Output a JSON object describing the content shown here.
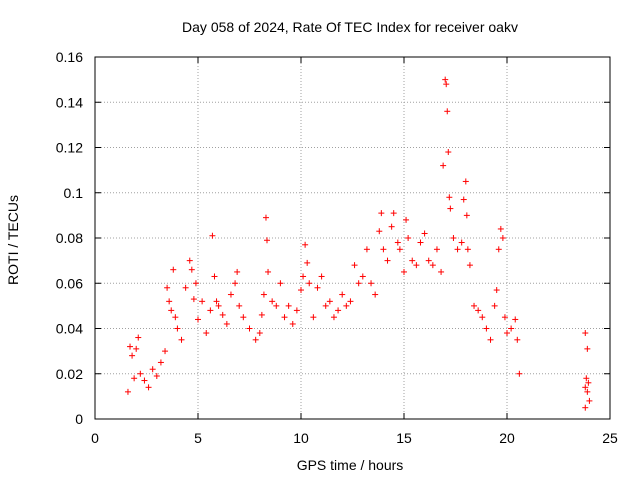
{
  "chart_data": {
    "type": "scatter",
    "title": "Day 058 of 2024, Rate Of TEC Index for receiver oakv",
    "xlabel": "GPS time / hours",
    "ylabel": "ROTI / TECUs",
    "xlim": [
      0,
      25
    ],
    "ylim": [
      0,
      0.16
    ],
    "xticks": [
      0,
      5,
      10,
      15,
      20,
      25
    ],
    "xtick_labels": [
      "0",
      "5",
      "10",
      "15",
      "20",
      "25"
    ],
    "yticks": [
      0,
      0.02,
      0.04,
      0.06,
      0.08,
      0.1,
      0.12,
      0.14,
      0.16
    ],
    "ytick_labels": [
      "0",
      "0.02",
      "0.04",
      "0.06",
      "0.08",
      "0.1",
      "0.12",
      "0.14",
      "0.16"
    ],
    "grid": true,
    "marker": "+",
    "colors": {
      "points": "#ff0000",
      "grid": "#a0a0a0",
      "axes": "#000000"
    },
    "series": [
      {
        "name": "ROTI",
        "points": [
          [
            1.6,
            0.012
          ],
          [
            1.7,
            0.032
          ],
          [
            1.8,
            0.028
          ],
          [
            1.9,
            0.018
          ],
          [
            2.0,
            0.031
          ],
          [
            2.1,
            0.036
          ],
          [
            2.2,
            0.02
          ],
          [
            2.4,
            0.017
          ],
          [
            2.6,
            0.014
          ],
          [
            2.8,
            0.022
          ],
          [
            3.0,
            0.019
          ],
          [
            3.2,
            0.025
          ],
          [
            3.4,
            0.03
          ],
          [
            3.5,
            0.058
          ],
          [
            3.6,
            0.052
          ],
          [
            3.7,
            0.048
          ],
          [
            3.8,
            0.066
          ],
          [
            3.9,
            0.045
          ],
          [
            4.0,
            0.04
          ],
          [
            4.2,
            0.035
          ],
          [
            4.4,
            0.058
          ],
          [
            4.6,
            0.07
          ],
          [
            4.7,
            0.066
          ],
          [
            4.8,
            0.053
          ],
          [
            4.9,
            0.06
          ],
          [
            5.0,
            0.044
          ],
          [
            5.2,
            0.052
          ],
          [
            5.4,
            0.038
          ],
          [
            5.6,
            0.048
          ],
          [
            5.7,
            0.081
          ],
          [
            5.8,
            0.063
          ],
          [
            5.9,
            0.052
          ],
          [
            6.0,
            0.05
          ],
          [
            6.2,
            0.046
          ],
          [
            6.4,
            0.042
          ],
          [
            6.6,
            0.055
          ],
          [
            6.8,
            0.06
          ],
          [
            6.9,
            0.065
          ],
          [
            7.0,
            0.05
          ],
          [
            7.2,
            0.045
          ],
          [
            7.5,
            0.04
          ],
          [
            7.8,
            0.035
          ],
          [
            8.0,
            0.038
          ],
          [
            8.1,
            0.046
          ],
          [
            8.2,
            0.055
          ],
          [
            8.3,
            0.089
          ],
          [
            8.35,
            0.079
          ],
          [
            8.4,
            0.065
          ],
          [
            8.6,
            0.052
          ],
          [
            8.8,
            0.05
          ],
          [
            9.0,
            0.06
          ],
          [
            9.2,
            0.045
          ],
          [
            9.4,
            0.05
          ],
          [
            9.6,
            0.042
          ],
          [
            9.8,
            0.048
          ],
          [
            10.0,
            0.057
          ],
          [
            10.1,
            0.063
          ],
          [
            10.2,
            0.077
          ],
          [
            10.3,
            0.069
          ],
          [
            10.4,
            0.06
          ],
          [
            10.6,
            0.045
          ],
          [
            10.8,
            0.058
          ],
          [
            11.0,
            0.063
          ],
          [
            11.2,
            0.05
          ],
          [
            11.4,
            0.052
          ],
          [
            11.6,
            0.045
          ],
          [
            11.8,
            0.048
          ],
          [
            12.0,
            0.055
          ],
          [
            12.2,
            0.05
          ],
          [
            12.4,
            0.052
          ],
          [
            12.6,
            0.068
          ],
          [
            12.8,
            0.06
          ],
          [
            13.0,
            0.063
          ],
          [
            13.2,
            0.075
          ],
          [
            13.4,
            0.06
          ],
          [
            13.6,
            0.055
          ],
          [
            13.8,
            0.083
          ],
          [
            13.9,
            0.091
          ],
          [
            14.0,
            0.075
          ],
          [
            14.2,
            0.07
          ],
          [
            14.4,
            0.085
          ],
          [
            14.5,
            0.091
          ],
          [
            14.7,
            0.078
          ],
          [
            14.8,
            0.075
          ],
          [
            15.0,
            0.065
          ],
          [
            15.1,
            0.088
          ],
          [
            15.2,
            0.08
          ],
          [
            15.4,
            0.07
          ],
          [
            15.6,
            0.068
          ],
          [
            15.8,
            0.078
          ],
          [
            16.0,
            0.082
          ],
          [
            16.2,
            0.07
          ],
          [
            16.4,
            0.068
          ],
          [
            16.6,
            0.075
          ],
          [
            16.8,
            0.065
          ],
          [
            16.9,
            0.112
          ],
          [
            17.0,
            0.15
          ],
          [
            17.05,
            0.148
          ],
          [
            17.1,
            0.136
          ],
          [
            17.15,
            0.118
          ],
          [
            17.2,
            0.098
          ],
          [
            17.25,
            0.093
          ],
          [
            17.4,
            0.08
          ],
          [
            17.6,
            0.075
          ],
          [
            17.8,
            0.078
          ],
          [
            17.9,
            0.097
          ],
          [
            18.0,
            0.105
          ],
          [
            18.05,
            0.09
          ],
          [
            18.1,
            0.075
          ],
          [
            18.2,
            0.068
          ],
          [
            18.4,
            0.05
          ],
          [
            18.6,
            0.048
          ],
          [
            18.8,
            0.045
          ],
          [
            19.0,
            0.04
          ],
          [
            19.2,
            0.035
          ],
          [
            19.4,
            0.05
          ],
          [
            19.5,
            0.057
          ],
          [
            19.6,
            0.075
          ],
          [
            19.7,
            0.084
          ],
          [
            19.8,
            0.08
          ],
          [
            19.9,
            0.045
          ],
          [
            20.0,
            0.038
          ],
          [
            20.2,
            0.04
          ],
          [
            20.4,
            0.044
          ],
          [
            20.5,
            0.035
          ],
          [
            20.6,
            0.02
          ],
          [
            23.8,
            0.038
          ],
          [
            23.9,
            0.031
          ],
          [
            23.85,
            0.018
          ],
          [
            23.9,
            0.012
          ],
          [
            24.0,
            0.008
          ],
          [
            23.8,
            0.014
          ],
          [
            23.95,
            0.016
          ],
          [
            23.8,
            0.005
          ]
        ]
      }
    ]
  }
}
